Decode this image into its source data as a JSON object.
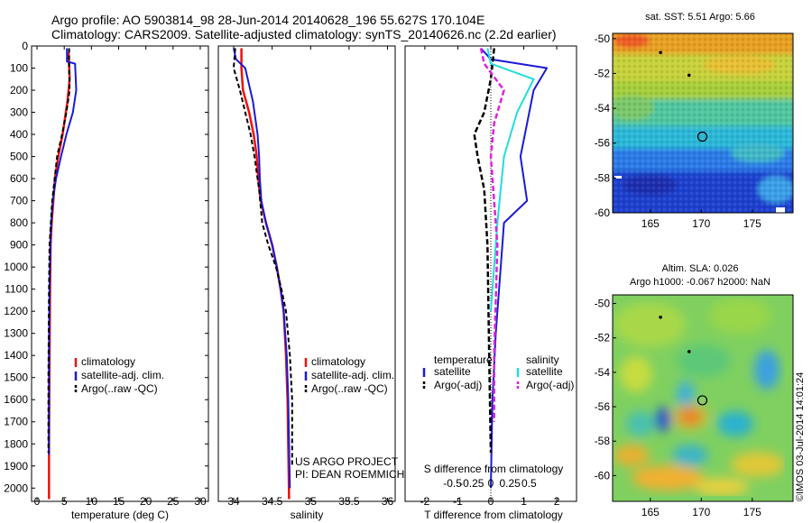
{
  "header": {
    "line1": "Argo profile: AO 5903814_98 28-Jun-2014 20140628_196 55.627S 170.104E",
    "line2": "Climatology: CARS2009. Satellite-adjusted climatology: synTS_20140626.nc (2.2d earlier)"
  },
  "colors": {
    "climatology": "#ee1111",
    "satellite": "#1a1ad6",
    "argo": "#000000",
    "t_sat": "#1a1ad6",
    "s_sat": "#22dddd",
    "s_argo": "#dd22dd"
  },
  "chart_data": [
    {
      "type": "line",
      "name": "temperature-profile",
      "xlabel": "temperature (deg C)",
      "ylabel": "",
      "xlim": [
        -1,
        31.5
      ],
      "ylim": [
        2060,
        0
      ],
      "xticks": [
        "0",
        "5",
        "10",
        "15",
        "20",
        "25",
        "30"
      ],
      "xtick_values": [
        0,
        5,
        10,
        15,
        20,
        25,
        30
      ],
      "yticks": [
        "0",
        "100",
        "200",
        "300",
        "400",
        "500",
        "600",
        "700",
        "800",
        "900",
        "1000",
        "1100",
        "1200",
        "1300",
        "1400",
        "1500",
        "1600",
        "1700",
        "1800",
        "1900",
        "2000"
      ],
      "ytick_values": [
        0,
        100,
        200,
        300,
        400,
        500,
        600,
        700,
        800,
        900,
        1000,
        1100,
        1200,
        1300,
        1400,
        1500,
        1600,
        1700,
        1800,
        1900,
        2000
      ],
      "legend": [
        "climatology",
        "satellite-adj. clim.",
        "Argo(..raw -QC)"
      ],
      "series": [
        {
          "name": "climatology",
          "x": [
            5.8,
            6.0,
            5.6,
            4.7,
            3.9,
            3.3,
            3.0,
            2.7,
            2.5,
            2.4,
            2.3,
            2.2,
            2.2
          ],
          "y": [
            30,
            150,
            250,
            400,
            500,
            600,
            700,
            800,
            900,
            1100,
            1400,
            1800,
            2050
          ]
        },
        {
          "name": "satellite-adj. clim.",
          "x": [
            5.5,
            5.5,
            7.0,
            7.2,
            6.6,
            5.4,
            4.4,
            3.5,
            2.9,
            2.5,
            2.3,
            2.2,
            2.2
          ],
          "y": [
            10,
            70,
            80,
            200,
            300,
            400,
            500,
            600,
            700,
            850,
            1100,
            1400,
            1850
          ]
        },
        {
          "name": "Argo(..raw -QC)",
          "x": [
            5.9,
            5.9,
            6.0,
            5.4,
            4.6,
            3.7,
            2.8,
            2.3,
            2.2,
            2.1,
            2.1
          ],
          "y": [
            10,
            100,
            200,
            300,
            400,
            500,
            700,
            900,
            1100,
            1500,
            1840
          ]
        }
      ]
    },
    {
      "type": "line",
      "name": "salinity-profile",
      "xlabel": "salinity",
      "ylabel": "",
      "xlim": [
        33.8,
        36.1
      ],
      "ylim": [
        2060,
        0
      ],
      "xticks": [
        "34",
        "34.5",
        "35",
        "35.5",
        "36"
      ],
      "xtick_values": [
        34,
        34.5,
        35,
        35.5,
        36
      ],
      "legend": [
        "climatology",
        "satellite-adj. clim.",
        "Argo(..raw -QC)"
      ],
      "annotation": [
        "US ARGO PROJECT",
        "PI: DEAN ROEMMICH"
      ],
      "series": [
        {
          "name": "climatology",
          "x": [
            34.1,
            34.1,
            34.12,
            34.2,
            34.26,
            34.3,
            34.32,
            34.35,
            34.42,
            34.5,
            34.56,
            34.61,
            34.65,
            34.68,
            34.7,
            34.72
          ],
          "y": [
            10,
            100,
            200,
            300,
            400,
            500,
            600,
            700,
            800,
            900,
            1000,
            1100,
            1200,
            1400,
            1600,
            2050
          ]
        },
        {
          "name": "satellite-adj. clim.",
          "x": [
            34.0,
            34.03,
            34.15,
            34.25,
            34.31,
            34.33,
            34.34,
            34.36,
            34.42,
            34.5,
            34.56,
            34.61,
            34.65,
            34.69,
            34.71,
            34.73
          ],
          "y": [
            10,
            60,
            100,
            250,
            400,
            500,
            600,
            700,
            800,
            900,
            1000,
            1100,
            1200,
            1400,
            1600,
            2000
          ]
        },
        {
          "name": "Argo(..raw -QC)",
          "x": [
            34.02,
            34.0,
            34.08,
            34.15,
            34.22,
            34.27,
            34.33,
            34.37,
            34.45,
            34.55,
            34.62,
            34.68,
            34.73,
            34.76,
            34.76
          ],
          "y": [
            10,
            100,
            200,
            300,
            400,
            500,
            650,
            800,
            900,
            1000,
            1100,
            1200,
            1400,
            1600,
            1900
          ]
        }
      ]
    },
    {
      "type": "line",
      "name": "difference-from-climatology",
      "xlabel": "T difference from climatology",
      "x2label": "S difference from climatology",
      "xlim": [
        -2.6,
        2.6
      ],
      "ylim": [
        2060,
        0
      ],
      "xticks": [
        "-2",
        "-1",
        "0",
        "1",
        "2"
      ],
      "xtick_values": [
        -2,
        -1,
        0,
        1,
        2
      ],
      "x2ticks": [
        "-0.5",
        "-0.25",
        "0",
        "0.25",
        "0.5"
      ],
      "x2tick_values": [
        -0.5,
        -0.25,
        0,
        0.25,
        0.5
      ],
      "legend_headers": [
        "temperature",
        "salinity"
      ],
      "legend": [
        "satellite",
        "Argo(-adj)",
        "satellite",
        "Argo(-adj)"
      ],
      "series": [
        {
          "name": "satellite",
          "group": "temperature",
          "x": [
            -0.3,
            0.0,
            1.7,
            1.3,
            1.1,
            0.9,
            1.1,
            0.4,
            0.3,
            0.15,
            0.05,
            0.0
          ],
          "y": [
            10,
            60,
            100,
            200,
            350,
            500,
            700,
            800,
            1000,
            1300,
            1600,
            2000
          ]
        },
        {
          "name": "Argo(-adj)",
          "group": "temperature",
          "x": [
            0.1,
            0.0,
            -0.2,
            -0.5,
            -0.4,
            -0.2,
            -0.1,
            -0.05,
            0.0
          ],
          "y": [
            10,
            150,
            300,
            400,
            500,
            650,
            900,
            1400,
            1840
          ]
        },
        {
          "name": "satellite",
          "group": "salinity",
          "x": [
            -0.1,
            0.0,
            1.3,
            0.8,
            0.4,
            0.2,
            0.0
          ],
          "y": [
            10,
            80,
            150,
            300,
            500,
            800,
            1200
          ]
        },
        {
          "name": "Argo(-adj)",
          "group": "salinity",
          "x": [
            -0.3,
            -0.2,
            0.4,
            0.1,
            0.0,
            0.2,
            0.1,
            0.1
          ],
          "y": [
            10,
            80,
            200,
            350,
            500,
            900,
            1400,
            1700
          ]
        }
      ]
    },
    {
      "type": "heatmap",
      "name": "sst-map",
      "title": "sat. SST: 5.51 Argo: 5.66",
      "xticks": [
        "165",
        "170",
        "175"
      ],
      "xtick_values": [
        165,
        170,
        175
      ],
      "yticks": [
        "-50",
        "-52",
        "-54",
        "-56",
        "-58",
        "-60"
      ],
      "ytick_values": [
        -50,
        -52,
        -54,
        -56,
        -58,
        -60
      ],
      "xlim": [
        161.3,
        179
      ],
      "ylim": [
        -60,
        -49.7
      ],
      "argo_position": [
        170.104,
        -55.627
      ],
      "track_points": [
        [
          166,
          -50.8
        ],
        [
          168.8,
          -52.1
        ]
      ]
    },
    {
      "type": "heatmap",
      "name": "sla-map",
      "title": [
        "Altim. SLA: 0.026",
        "Argo h1000: -0.067 h2000: NaN"
      ],
      "xticks": [
        "165",
        "170",
        "175"
      ],
      "xtick_values": [
        165,
        170,
        175
      ],
      "yticks": [
        "-50",
        "-52",
        "-54",
        "-56",
        "-58",
        "-60"
      ],
      "ytick_values": [
        -50,
        -52,
        -54,
        -56,
        -58,
        -60
      ],
      "xlim": [
        161.3,
        179
      ],
      "ylim": [
        -61.5,
        -49.5
      ],
      "argo_position": [
        170.104,
        -55.627
      ],
      "track_points": [
        [
          166,
          -50.8
        ],
        [
          168.8,
          -52.8
        ]
      ]
    }
  ],
  "watermark": "©IMOS 03-Jul-2014 14:01:24"
}
